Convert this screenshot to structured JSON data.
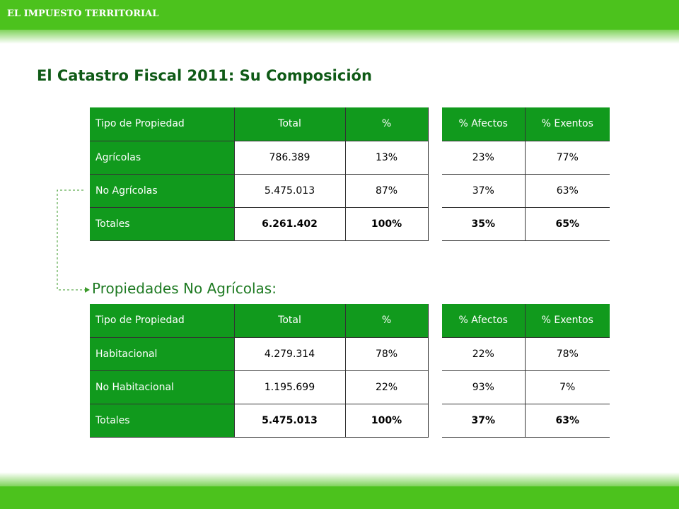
{
  "header": {
    "section": "EL IMPUESTO TERRITORIAL"
  },
  "title": "El Catastro Fiscal 2011: Su Composición",
  "colors": {
    "accent": "#4cc21d",
    "table_header": "#119a1d",
    "title": "#0f5a16"
  },
  "table1": {
    "headers": [
      "Tipo de Propiedad",
      "Total",
      "%"
    ],
    "rows": [
      [
        "Agrícolas",
        "786.389",
        "13%"
      ],
      [
        "No Agrícolas",
        "5.475.013",
        "87%"
      ],
      [
        "Totales",
        "6.261.402",
        "100%"
      ]
    ],
    "side_headers": [
      "% Afectos",
      "% Exentos"
    ],
    "side_rows": [
      [
        "23%",
        "77%"
      ],
      [
        "37%",
        "63%"
      ],
      [
        "35%",
        "65%"
      ]
    ]
  },
  "subtitle": "Propiedades No Agrícolas:",
  "table2": {
    "headers": [
      "Tipo de Propiedad",
      "Total",
      "%"
    ],
    "rows": [
      [
        "Habitacional",
        "4.279.314",
        "78%"
      ],
      [
        "No Habitacional",
        "1.195.699",
        "22%"
      ],
      [
        "Totales",
        "5.475.013",
        "100%"
      ]
    ],
    "side_headers": [
      "% Afectos",
      "% Exentos"
    ],
    "side_rows": [
      [
        "22%",
        "78%"
      ],
      [
        "93%",
        "7%"
      ],
      [
        "37%",
        "63%"
      ]
    ]
  }
}
